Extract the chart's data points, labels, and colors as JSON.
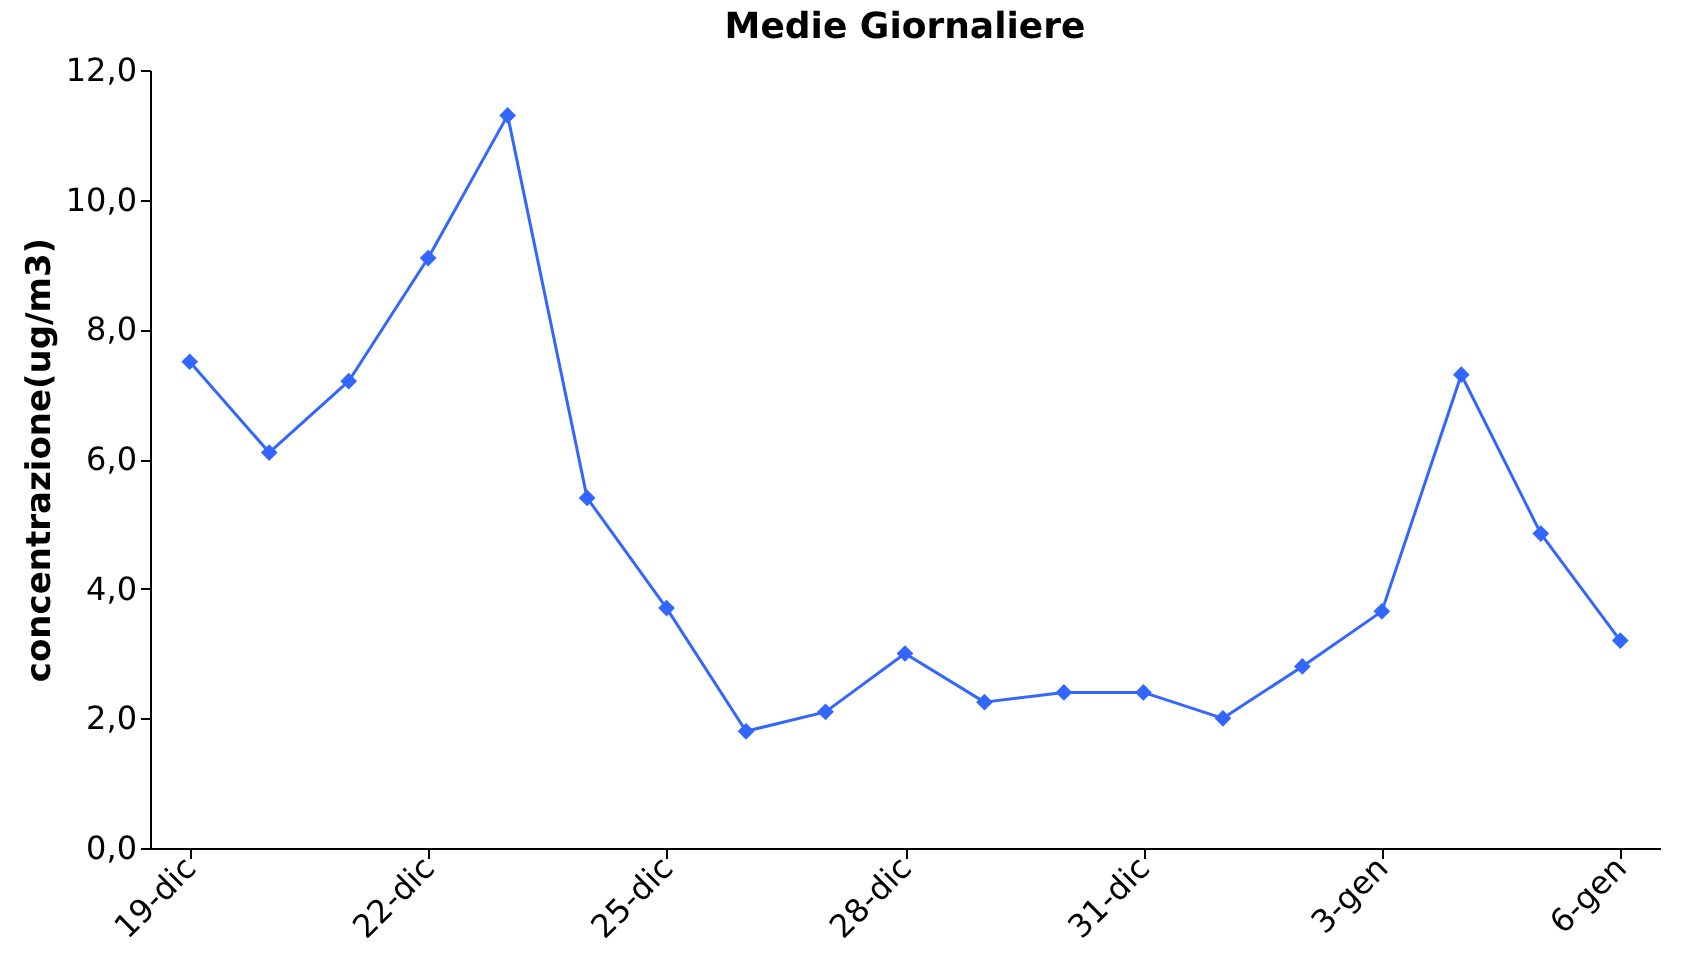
{
  "chart_data": {
    "type": "line",
    "title": "Medie Giornaliere",
    "ylabel": "concentrazione(ug/m3)",
    "categories": [
      "19-dic",
      null,
      null,
      "22-dic",
      null,
      null,
      "25-dic",
      null,
      null,
      "28-dic",
      null,
      null,
      "31-dic",
      null,
      null,
      "3-gen",
      null,
      null,
      "6-gen"
    ],
    "series": [
      {
        "color": "#3366ff",
        "values": [
          7.5,
          6.1,
          7.2,
          9.1,
          11.3,
          5.4,
          3.7,
          1.8,
          2.1,
          3.0,
          2.25,
          2.4,
          2.4,
          2.0,
          2.8,
          3.65,
          7.3,
          4.85,
          3.2
        ]
      }
    ],
    "ylim": [
      0,
      12
    ],
    "yticks": [
      {
        "value": 0,
        "label": "0,0"
      },
      {
        "value": 2,
        "label": "2,0"
      },
      {
        "value": 4,
        "label": "4,0"
      },
      {
        "value": 6,
        "label": "6,0"
      },
      {
        "value": 8,
        "label": "8,0"
      },
      {
        "value": 10,
        "label": "10,0"
      },
      {
        "value": 12,
        "label": "12,0"
      }
    ],
    "grid": false,
    "marker": "diamond",
    "line_style": "solid"
  }
}
